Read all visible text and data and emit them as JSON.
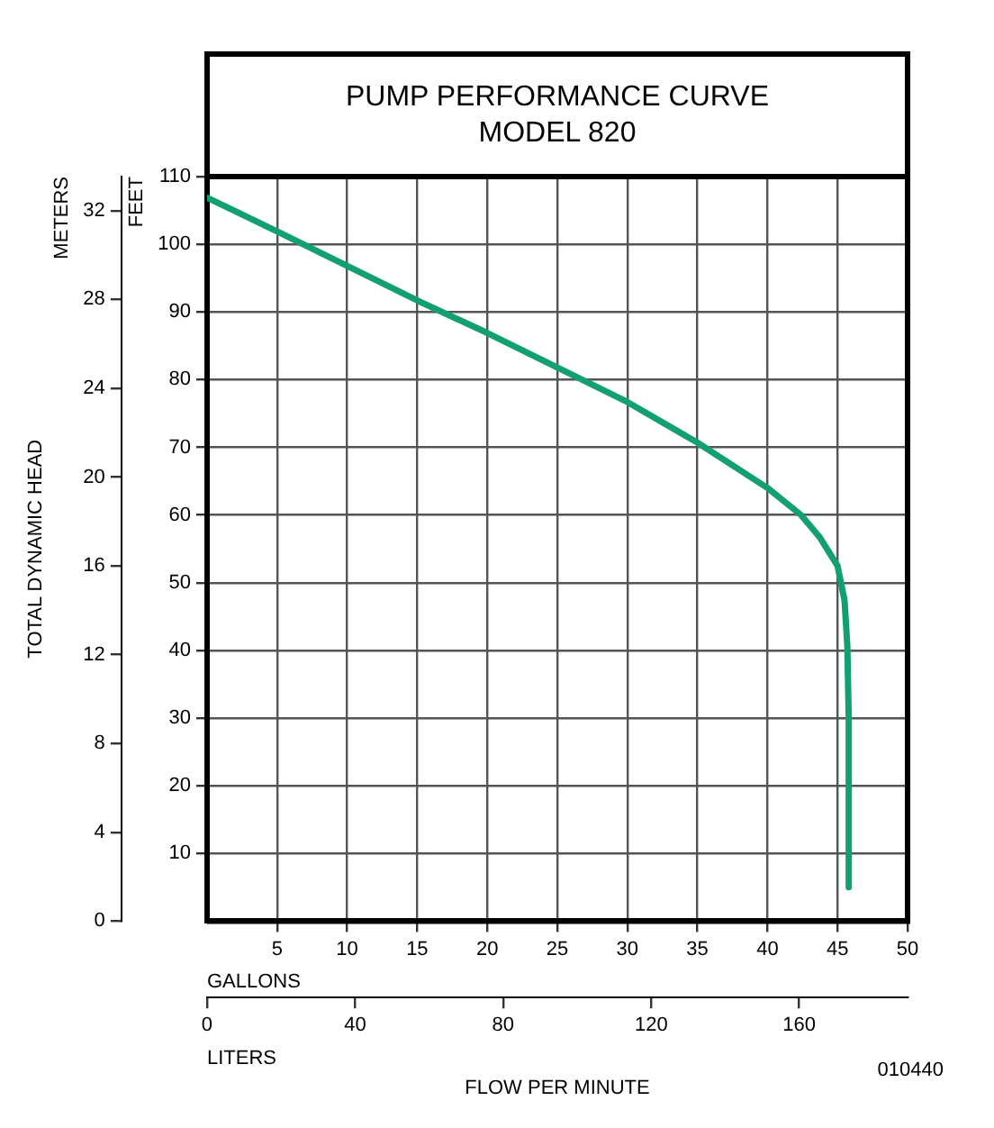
{
  "chart_data": {
    "type": "line",
    "title": "PUMP PERFORMANCE CURVE",
    "subtitle": "MODEL 820",
    "xlabel": "GALLONS",
    "x2label": "LITERS",
    "ylabel": "FEET",
    "y2label": "METERS",
    "annotations": [
      "TOTAL DYNAMIC HEAD",
      "FLOW PER MINUTE",
      "010440"
    ],
    "series": [
      {
        "color": "#12a072",
        "x": [
          0,
          5,
          10,
          15,
          20,
          25,
          30,
          35,
          40,
          42.4,
          43.7,
          45,
          45.5,
          45.7,
          45.8,
          45.8
        ],
        "values": [
          106.9,
          101.9,
          96.8,
          91.7,
          86.9,
          81.8,
          76.7,
          70.7,
          64.0,
          60.0,
          56.8,
          52.5,
          47.4,
          40.7,
          30.0,
          5.0
        ]
      }
    ],
    "xlim": [
      0,
      50
    ],
    "xticks": [
      5,
      10,
      15,
      20,
      25,
      30,
      35,
      40,
      45,
      50
    ],
    "x2lim": [
      0,
      189.27
    ],
    "x2ticks": [
      0,
      40,
      80,
      120,
      160
    ],
    "ylim": [
      0,
      110
    ],
    "yticks": [
      10,
      20,
      30,
      40,
      50,
      60,
      70,
      80,
      90,
      100,
      110
    ],
    "y2lim": [
      0,
      33.53
    ],
    "y2ticks": [
      0,
      4,
      8,
      12,
      16,
      20,
      24,
      28,
      32
    ],
    "grid": true,
    "legend": false,
    "marker": "none",
    "line_style": "solid"
  }
}
